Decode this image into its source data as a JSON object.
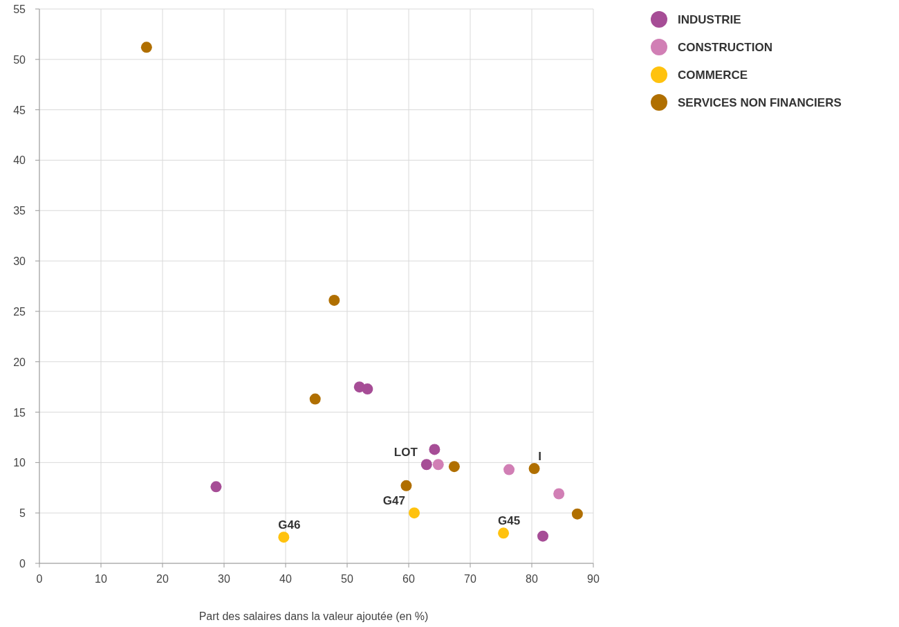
{
  "chart_data": {
    "type": "scatter",
    "xlabel": "Part des salaires dans la valeur ajoutée (en %)",
    "xlim": [
      0,
      90
    ],
    "xticks": [
      0,
      10,
      20,
      30,
      40,
      50,
      60,
      70,
      80,
      90
    ],
    "ylim": [
      0,
      55
    ],
    "yticks": [
      0,
      5,
      10,
      15,
      20,
      25,
      30,
      35,
      40,
      45,
      50,
      55
    ],
    "grid": true,
    "legend": "top right",
    "marker": "circle",
    "series": [
      {
        "name": "INDUSTRIE",
        "color": "#a64d96",
        "x": [
          28.7,
          52.0,
          53.3,
          64.2,
          62.9,
          81.8
        ],
        "values": [
          7.6,
          17.5,
          17.3,
          11.3,
          9.8,
          2.7
        ]
      },
      {
        "name": "CONSTRUCTION",
        "color": "#d17fb5",
        "x": [
          64.8,
          76.3,
          84.4
        ],
        "values": [
          9.8,
          9.3,
          6.9
        ]
      },
      {
        "name": "COMMERCE",
        "color": "#ffc20e",
        "x": [
          39.7,
          60.9,
          75.4
        ],
        "values": [
          2.6,
          5.0,
          3.0
        ]
      },
      {
        "name": "SERVICES NON FINANCIERS",
        "color": "#b06f00",
        "x": [
          17.4,
          47.9,
          44.8,
          59.6,
          67.4,
          80.4,
          87.4
        ],
        "values": [
          51.2,
          26.1,
          16.3,
          7.7,
          9.6,
          9.4,
          4.9
        ]
      }
    ],
    "annotations": [
      {
        "text": "LOT",
        "x": 62.9,
        "y": 9.8
      },
      {
        "text": "I",
        "x": 80.4,
        "y": 9.4
      },
      {
        "text": "G46",
        "x": 39.7,
        "y": 2.6
      },
      {
        "text": "G47",
        "x": 60.9,
        "y": 5.0
      },
      {
        "text": "G45",
        "x": 75.4,
        "y": 3.0
      }
    ]
  }
}
